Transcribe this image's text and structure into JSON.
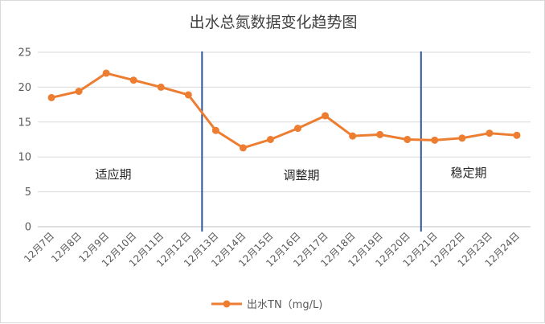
{
  "chart_data": {
    "type": "line",
    "title": "出水总氮数据变化趋势图",
    "categories": [
      "12月7日",
      "12月8日",
      "12月9日",
      "12月10日",
      "12月11日",
      "12月12日",
      "12月13日",
      "12月14日",
      "12月15日",
      "12月16日",
      "12月17日",
      "12月18日",
      "12月19日",
      "12月20日",
      "12月21日",
      "12月22日",
      "12月23日",
      "12月24日"
    ],
    "series": [
      {
        "name": "出水TN（mg/L)",
        "color": "#ED7D31",
        "values": [
          18.5,
          19.4,
          22.0,
          21.0,
          20.0,
          18.9,
          13.8,
          11.3,
          12.5,
          14.1,
          15.9,
          13.0,
          13.2,
          12.5,
          12.4,
          12.7,
          13.4,
          13.1
        ]
      }
    ],
    "ylim": [
      0,
      25
    ],
    "yticks": [
      "0",
      "5",
      "10",
      "15",
      "20",
      "25"
    ],
    "grid": "horizontal",
    "legend_position": "bottom",
    "phase_dividers": [
      {
        "between": [
          "12月12日",
          "12月13日"
        ],
        "color": "#2F5597"
      },
      {
        "between": [
          "12月20日",
          "12月21日"
        ],
        "color": "#2F5597"
      }
    ],
    "phase_labels": [
      "适应期",
      "调整期",
      "稳定期"
    ]
  }
}
